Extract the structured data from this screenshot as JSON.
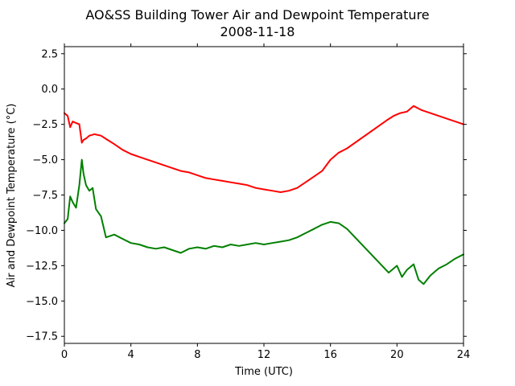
{
  "chart_data": {
    "type": "line",
    "title": "AO&SS Building Tower Air and Dewpoint Temperature",
    "subtitle": "2008-11-18",
    "xlabel": "Time (UTC)",
    "ylabel": "Air and Dewpoint Temperature (°C)",
    "xlim": [
      0,
      24
    ],
    "ylim": [
      -18,
      3
    ],
    "x_ticks": [
      0,
      4,
      8,
      12,
      16,
      20,
      24
    ],
    "y_ticks": [
      2.5,
      0.0,
      -2.5,
      -5.0,
      -7.5,
      -10.0,
      -12.5,
      -15.0,
      -17.5
    ],
    "y_tick_labels": [
      "2.5",
      "0.0",
      "−2.5",
      "−5.0",
      "−7.5",
      "−10.0",
      "−12.5",
      "−15.0",
      "−17.5"
    ],
    "grid": false,
    "legend": "none",
    "series": [
      {
        "color": "#ff0000",
        "x": [
          0,
          0.2,
          0.35,
          0.5,
          0.7,
          0.9,
          1.05,
          1.15,
          1.3,
          1.5,
          1.8,
          2.2,
          2.6,
          3.0,
          3.5,
          4.0,
          4.5,
          5.0,
          5.5,
          6.0,
          6.5,
          7.0,
          7.5,
          8.0,
          8.5,
          9.0,
          9.5,
          10.0,
          10.5,
          11.0,
          11.5,
          12.0,
          12.5,
          13.0,
          13.5,
          14.0,
          14.5,
          15.0,
          15.5,
          16.0,
          16.5,
          17.0,
          19.4,
          19.8,
          20.2,
          20.6,
          21.0,
          21.5,
          22.0,
          22.5,
          23.0,
          23.5,
          24.0
        ],
        "y": [
          -1.7,
          -1.9,
          -2.7,
          -2.3,
          -2.4,
          -2.5,
          -3.8,
          -3.6,
          -3.5,
          -3.3,
          -3.2,
          -3.3,
          -3.6,
          -3.9,
          -4.3,
          -4.6,
          -4.8,
          -5.0,
          -5.2,
          -5.4,
          -5.6,
          -5.8,
          -5.9,
          -6.1,
          -6.3,
          -6.4,
          -6.5,
          -6.6,
          -6.7,
          -6.8,
          -7.0,
          -7.1,
          -7.2,
          -7.3,
          -7.2,
          -7.0,
          -6.6,
          -6.2,
          -5.8,
          -5.0,
          -4.5,
          -4.2,
          -2.2,
          -1.9,
          -1.7,
          -1.6,
          -1.2,
          -1.5,
          -1.7,
          -1.9,
          -2.1,
          -2.3,
          -2.5
        ]
      },
      {
        "color": "#008000",
        "x": [
          0,
          0.2,
          0.35,
          0.5,
          0.7,
          0.9,
          1.05,
          1.15,
          1.3,
          1.5,
          1.7,
          1.9,
          2.2,
          2.5,
          3.0,
          3.5,
          4.0,
          4.5,
          5.0,
          5.5,
          6.0,
          6.5,
          7.0,
          7.5,
          8.0,
          8.5,
          9.0,
          9.5,
          10.0,
          10.5,
          11.0,
          11.5,
          12.0,
          12.5,
          13.0,
          13.5,
          14.0,
          14.5,
          15.0,
          15.5,
          16.0,
          16.5,
          17.0,
          19.5,
          20.0,
          20.3,
          20.6,
          21.0,
          21.3,
          21.6,
          22.0,
          22.5,
          23.0,
          23.5,
          24.0
        ],
        "y": [
          -9.5,
          -9.2,
          -7.6,
          -8.0,
          -8.4,
          -6.8,
          -5.0,
          -6.0,
          -6.8,
          -7.2,
          -7.0,
          -8.5,
          -9.0,
          -10.5,
          -10.3,
          -10.6,
          -10.9,
          -11.0,
          -11.2,
          -11.3,
          -11.2,
          -11.4,
          -11.6,
          -11.3,
          -11.2,
          -11.3,
          -11.1,
          -11.2,
          -11.0,
          -11.1,
          -11.0,
          -10.9,
          -11.0,
          -10.9,
          -10.8,
          -10.7,
          -10.5,
          -10.2,
          -9.9,
          -9.6,
          -9.4,
          -9.5,
          -9.9,
          -13.0,
          -12.5,
          -13.3,
          -12.8,
          -12.4,
          -13.5,
          -13.8,
          -13.2,
          -12.7,
          -12.4,
          -12.0,
          -11.7
        ]
      }
    ]
  }
}
